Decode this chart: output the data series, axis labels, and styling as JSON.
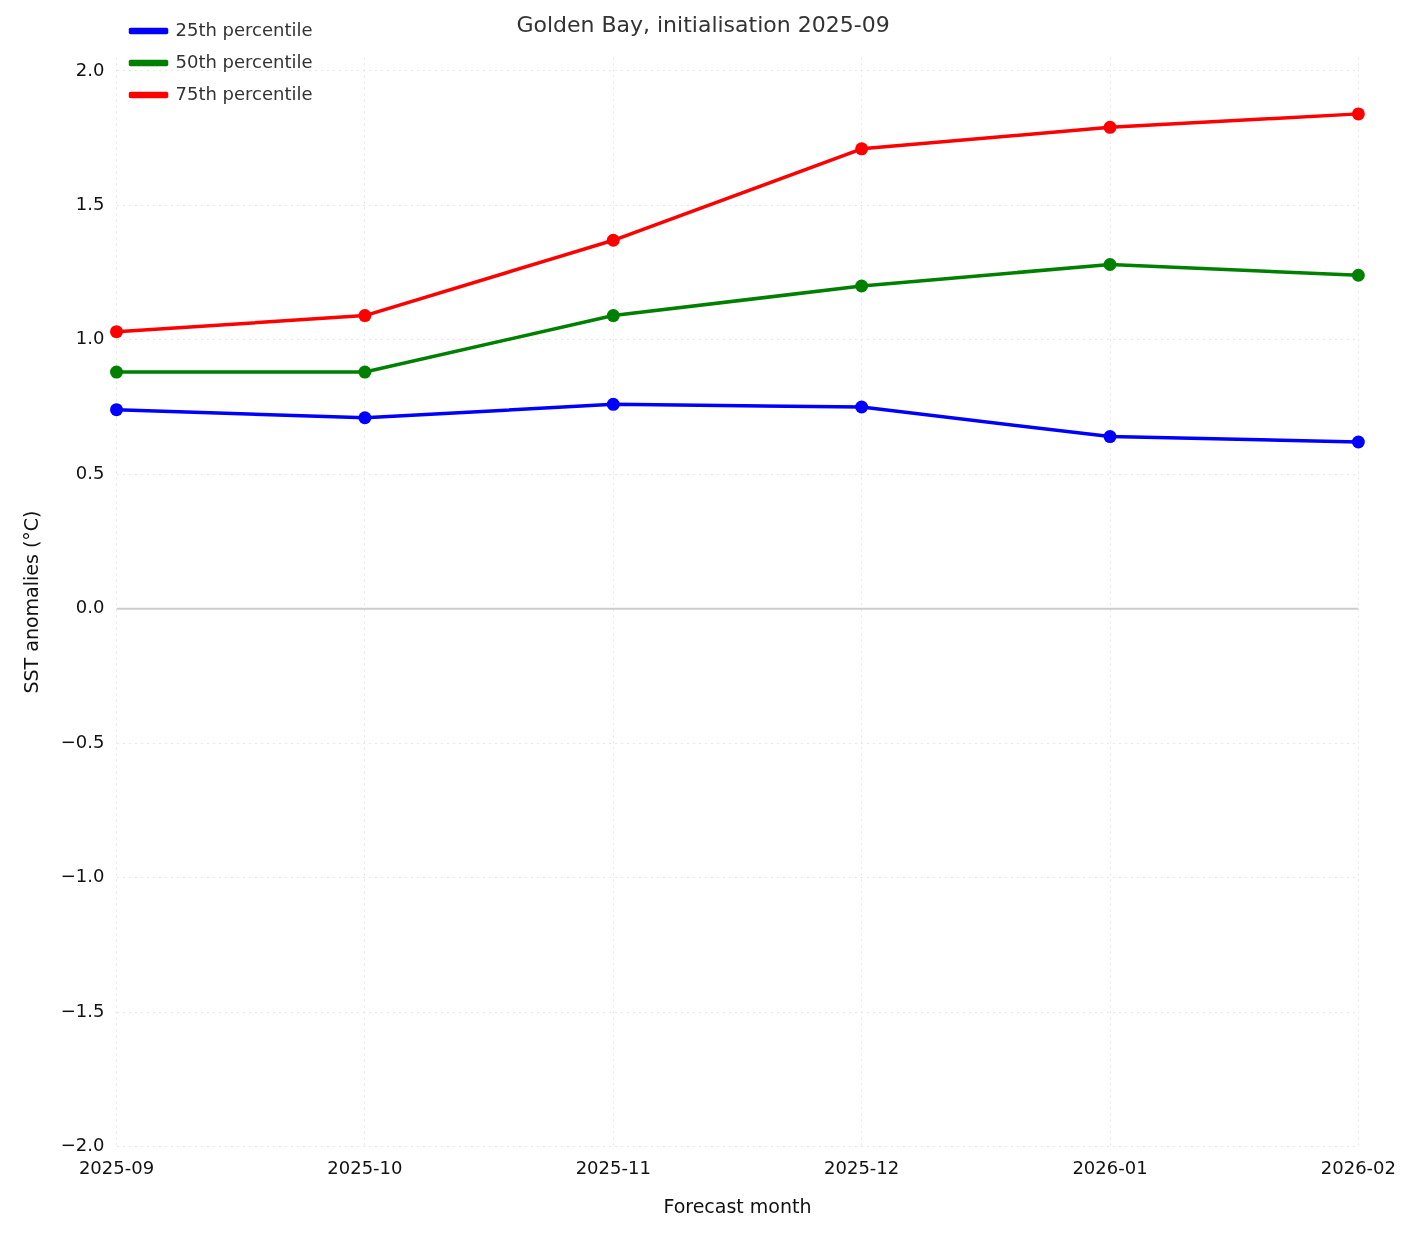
{
  "chart_data": {
    "type": "line",
    "title": "Golden Bay, initialisation 2025-09",
    "xlabel": "Forecast month",
    "ylabel": "SST anomalies (°C)",
    "categories": [
      "2025-09",
      "2025-10",
      "2025-11",
      "2025-12",
      "2026-01",
      "2026-02"
    ],
    "series": [
      {
        "name": "25th percentile",
        "color": "#0000ff",
        "values": [
          0.74,
          0.71,
          0.76,
          0.75,
          0.64,
          0.62
        ]
      },
      {
        "name": "50th percentile",
        "color": "#008000",
        "values": [
          0.88,
          0.88,
          1.09,
          1.2,
          1.28,
          1.24
        ]
      },
      {
        "name": "75th percentile",
        "color": "#ff0000",
        "values": [
          1.03,
          1.09,
          1.37,
          1.71,
          1.79,
          1.84
        ]
      }
    ],
    "ylim": [
      -2,
      2.05
    ],
    "yticks": [
      {
        "value": -2,
        "label": "−2.0"
      },
      {
        "value": -1.5,
        "label": "−1.5"
      },
      {
        "value": -1,
        "label": "−1.0"
      },
      {
        "value": -0.5,
        "label": "−0.5"
      },
      {
        "value": 0,
        "label": "0.0"
      },
      {
        "value": 0.5,
        "label": "0.5"
      },
      {
        "value": 1,
        "label": "1.0"
      },
      {
        "value": 1.5,
        "label": "1.5"
      },
      {
        "value": 2,
        "label": "2.0"
      }
    ],
    "ref_lines": [
      {
        "axis": "y",
        "value": 0,
        "color": "#cccccc"
      }
    ],
    "grid": true,
    "legend": "top left",
    "marker": "circle",
    "line_style": "solid"
  }
}
